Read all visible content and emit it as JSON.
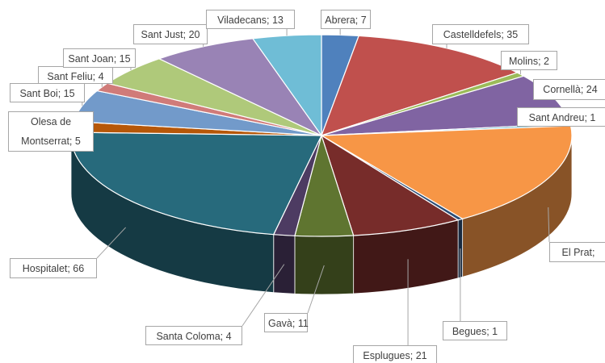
{
  "chart_data": {
    "type": "pie3d",
    "categories": [
      "Abrera",
      "Castelldefels",
      "Molins",
      "Cornellà",
      "Sant Andreu",
      "El Prat",
      "Begues",
      "Esplugues",
      "Gavà",
      "Santa Coloma",
      "Hospitalet",
      "Olesa de Montserrat",
      "Sant Boi",
      "Sant Feliu",
      "Sant Joan",
      "Sant Just",
      "Viladecans"
    ],
    "values": [
      7,
      35,
      2,
      24,
      1,
      50,
      1,
      21,
      11,
      4,
      66,
      5,
      15,
      4,
      15,
      20,
      13
    ],
    "value_labels": [
      "Abrera; 7",
      "Castelldefels; 35",
      "Molins; 2",
      "Cornellà; 24",
      "Sant Andreu; 1",
      "El Prat;",
      "Begues; 1",
      "Esplugues; 21",
      "Gavà; 11",
      "Santa Coloma; 4",
      "Hospitalet; 66",
      "Olesa de Montserrat; 5",
      "Sant Boi; 15",
      "Sant Feliu; 4",
      "Sant Joan; 15",
      "Sant Just; 20",
      "Viladecans; 13"
    ],
    "colors": [
      "#4f81bd",
      "#c0504d",
      "#9bbb59",
      "#8064a2",
      "#4bacc6",
      "#f79646",
      "#2c4d75",
      "#772c2a",
      "#5f7530",
      "#4d3b62",
      "#276a7c",
      "#b65708",
      "#729aca",
      "#d07b79",
      "#afc97a",
      "#9983b5",
      "#6fbdd6"
    ]
  }
}
